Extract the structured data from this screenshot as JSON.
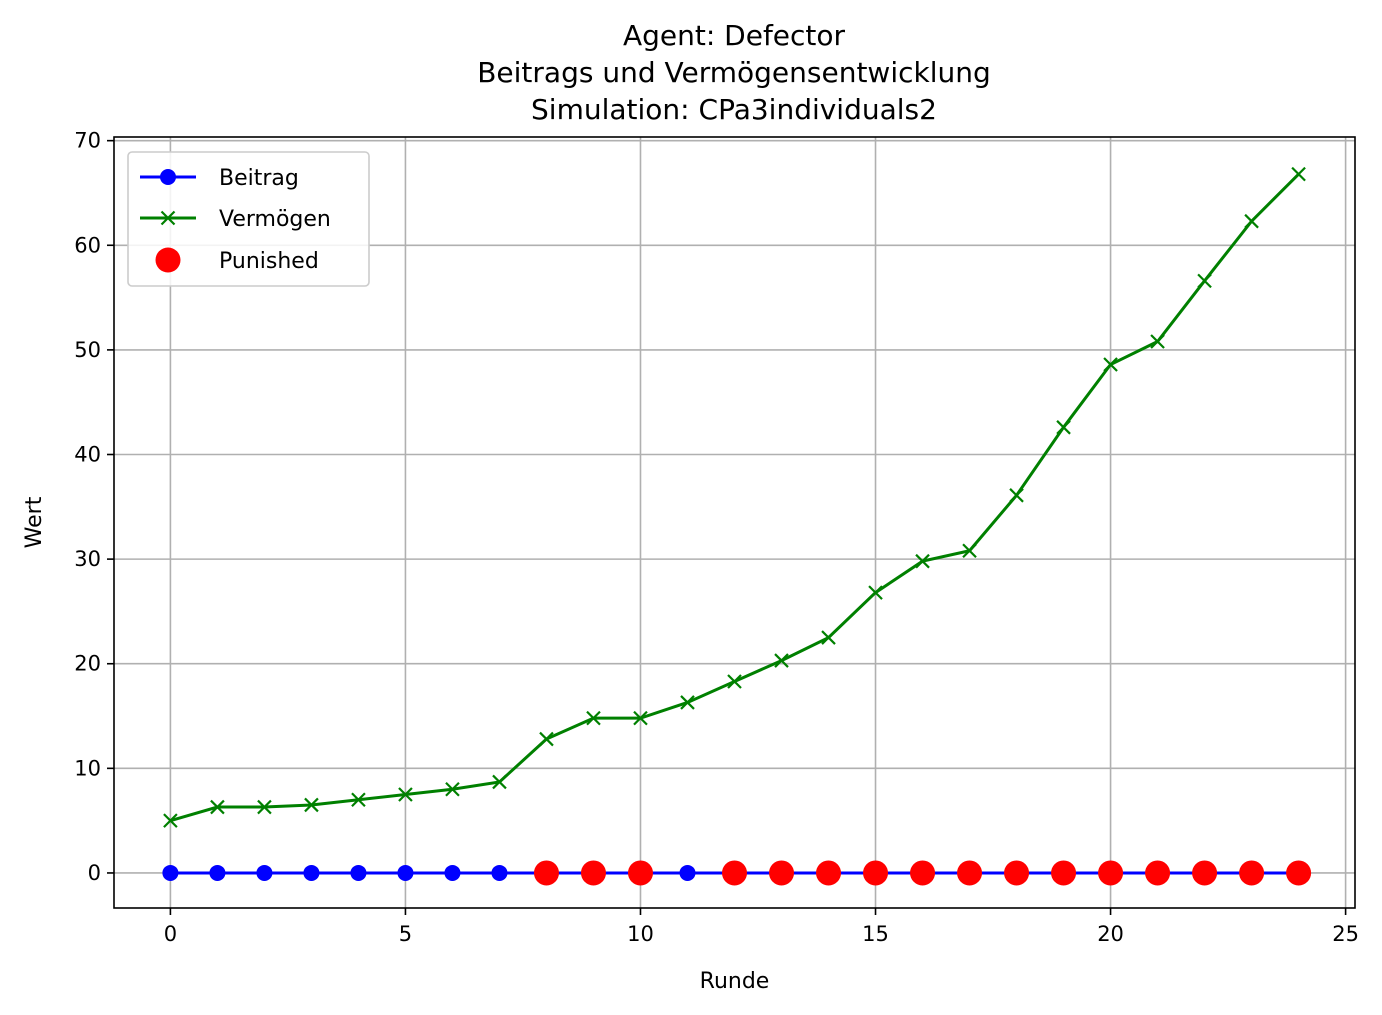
{
  "chart_data": {
    "type": "line",
    "title_lines": [
      "Agent: Defector",
      "Beitrags und Vermögensentwicklung",
      "Simulation: CPa3individuals2"
    ],
    "xlabel": "Runde",
    "ylabel": "Wert",
    "xlim": [
      -1.2,
      25.2
    ],
    "ylim": [
      -3.35,
      70.35
    ],
    "xticks": [
      0,
      5,
      10,
      15,
      20,
      25
    ],
    "yticks": [
      0,
      10,
      20,
      30,
      40,
      50,
      60,
      70
    ],
    "grid": true,
    "legend_position": "upper-left",
    "x": [
      0,
      1,
      2,
      3,
      4,
      5,
      6,
      7,
      8,
      9,
      10,
      11,
      12,
      13,
      14,
      15,
      16,
      17,
      18,
      19,
      20,
      21,
      22,
      23,
      24
    ],
    "series": [
      {
        "name": "Beitrag",
        "kind": "line-marker-circle",
        "color": "#0000ff",
        "values": [
          0,
          0,
          0,
          0,
          0,
          0,
          0,
          0,
          0,
          0,
          0,
          0,
          0,
          0,
          0,
          0,
          0,
          0,
          0,
          0,
          0,
          0,
          0,
          0,
          0
        ]
      },
      {
        "name": "Vermögen",
        "kind": "line-marker-x",
        "color": "#008000",
        "values": [
          5.0,
          6.3,
          6.3,
          6.5,
          7.0,
          7.5,
          8.0,
          8.7,
          12.8,
          14.8,
          14.8,
          16.3,
          18.3,
          20.3,
          22.5,
          26.8,
          29.8,
          30.8,
          36.1,
          42.6,
          48.6,
          50.8,
          56.6,
          62.3,
          66.8
        ]
      },
      {
        "name": "Punished",
        "kind": "scatter",
        "color": "#ff0000",
        "x": [
          8,
          9,
          10,
          12,
          13,
          14,
          15,
          16,
          17,
          18,
          19,
          20,
          21,
          22,
          23,
          24
        ],
        "values": [
          0,
          0,
          0,
          0,
          0,
          0,
          0,
          0,
          0,
          0,
          0,
          0,
          0,
          0,
          0,
          0
        ]
      }
    ]
  }
}
